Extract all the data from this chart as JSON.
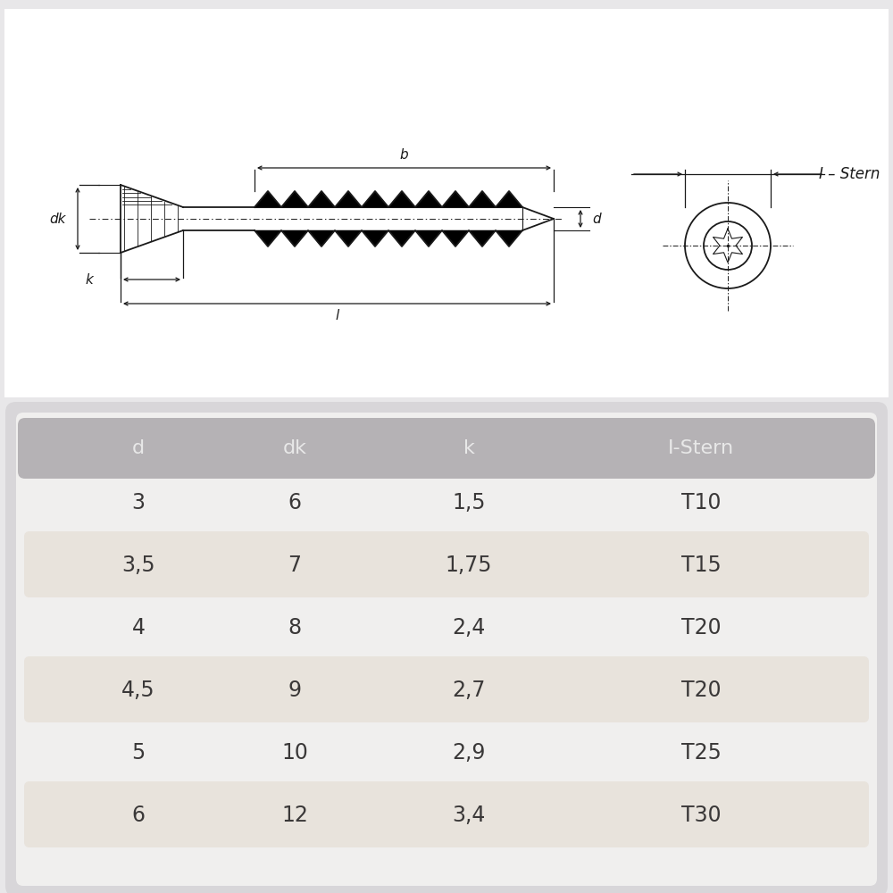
{
  "bg_color": "#e8e7e9",
  "drawing_bg": "#ffffff",
  "table_outer_bg": "#d8d6d9",
  "table_inner_bg": "#f0efee",
  "row_highlight": "#e8e3dc",
  "header_color": "#b5b2b5",
  "text_color": "#3a3838",
  "line_color": "#1a1a1a",
  "table_headers": [
    "d",
    "dk",
    "k",
    "I-Stern"
  ],
  "table_rows": [
    [
      "3",
      "6",
      "1,5",
      "T10"
    ],
    [
      "3,5",
      "7",
      "1,75",
      "T15"
    ],
    [
      "4",
      "8",
      "2,4",
      "T20"
    ],
    [
      "4,5",
      "9",
      "2,7",
      "T20"
    ],
    [
      "5",
      "10",
      "2,9",
      "T25"
    ],
    [
      "6",
      "12",
      "3,4",
      "T30"
    ]
  ],
  "highlight_rows": [
    1,
    3,
    5
  ],
  "label_dk": "dk",
  "label_k": "k",
  "label_b": "b",
  "label_l": "l",
  "label_d": "d",
  "label_istern": "I – Stern"
}
